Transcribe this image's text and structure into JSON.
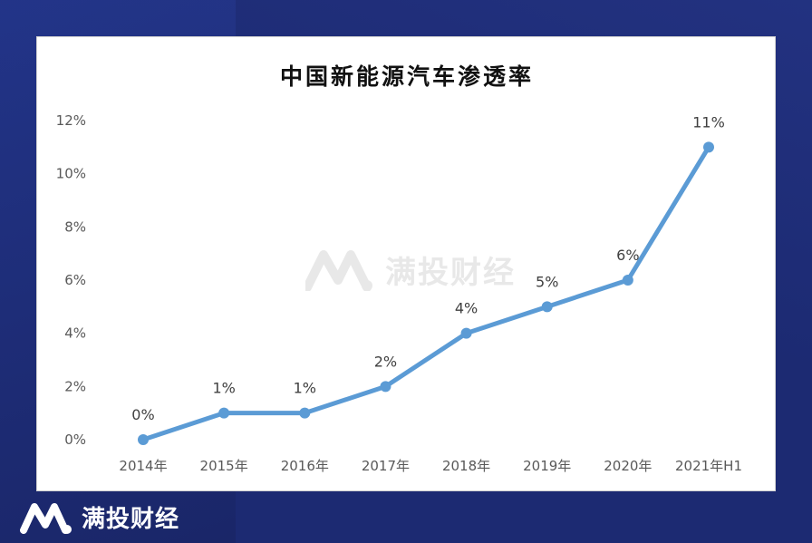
{
  "brand": {
    "name": "满投财经",
    "color": "#ffffff"
  },
  "watermark": {
    "text": "满投财经"
  },
  "colors": {
    "line": "#5b9bd5",
    "background": "#1c2a72",
    "card": "#ffffff"
  },
  "chart_data": {
    "type": "line",
    "title": "中国新能源汽车渗透率",
    "xlabel": "",
    "ylabel": "",
    "categories": [
      "2014年",
      "2015年",
      "2016年",
      "2017年",
      "2018年",
      "2019年",
      "2020年",
      "2021年H1"
    ],
    "values": [
      0,
      1,
      1,
      2,
      4,
      5,
      6,
      11
    ],
    "data_labels": [
      "0%",
      "1%",
      "1%",
      "2%",
      "4%",
      "5%",
      "6%",
      "11%"
    ],
    "y_ticks": [
      "0%",
      "2%",
      "4%",
      "6%",
      "8%",
      "10%",
      "12%"
    ],
    "ylim": [
      0,
      12
    ],
    "grid": false,
    "legend": "none"
  }
}
